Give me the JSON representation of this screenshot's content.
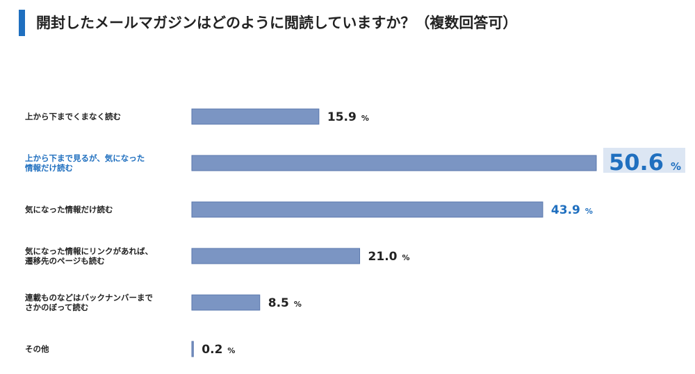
{
  "title": "開封したメールマガジンはどのように閲読していますか？（複数回答可）",
  "colors": {
    "accent": "#1f6fbf",
    "bar": "#7b95c3",
    "bar_border": "#5a77ad",
    "text": "#222222",
    "highlight_bg": "#dce6f3"
  },
  "chart_data": {
    "type": "bar",
    "orientation": "horizontal",
    "categories": [
      [
        "上から下までくまなく読む"
      ],
      [
        "上から下まで見るが、気になった",
        "情報だけ読む"
      ],
      [
        "気になった情報だけ読む"
      ],
      [
        "気になった情報にリンクがあれば、",
        "遷移先のページも読む"
      ],
      [
        "連載ものなどはバックナンバーまで",
        "さかのぼって読む"
      ],
      [
        "その他"
      ]
    ],
    "values": [
      15.9,
      50.6,
      43.9,
      21.0,
      8.5,
      0.2
    ],
    "value_labels": [
      "15.9",
      "50.6",
      "43.9",
      "21.0",
      "8.5",
      "0.2"
    ],
    "unit": "%",
    "highlight": [
      {
        "index": 1,
        "style": "large-accent-with-background"
      },
      {
        "index": 2,
        "style": "accent"
      }
    ],
    "xlim": [
      0,
      50.6
    ],
    "grid": false,
    "legend": "none"
  }
}
